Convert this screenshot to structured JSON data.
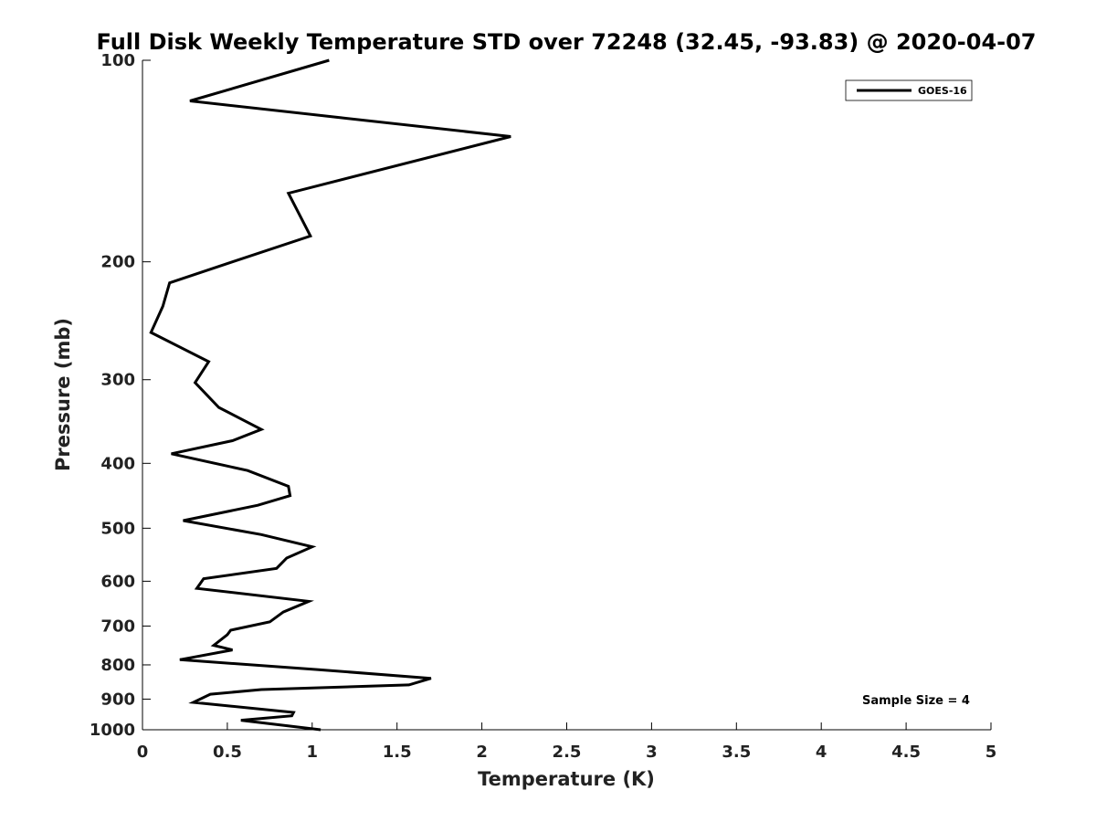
{
  "chart_data": {
    "type": "line",
    "title": "Full Disk Weekly Temperature STD over 72248 (32.45, -93.83) @ 2020-04-07",
    "xlabel": "Temperature (K)",
    "ylabel": "Pressure (mb)",
    "xlim": [
      0,
      5
    ],
    "ylim": [
      1000,
      100
    ],
    "yscale": "log",
    "x_ticks": [
      0,
      0.5,
      1,
      1.5,
      2,
      2.5,
      3,
      3.5,
      4,
      4.5,
      5
    ],
    "x_tick_labels": [
      "0",
      "0.5",
      "1",
      "1.5",
      "2",
      "2.5",
      "3",
      "3.5",
      "4",
      "4.5",
      "5"
    ],
    "y_ticks": [
      100,
      200,
      300,
      400,
      500,
      600,
      700,
      800,
      900,
      1000
    ],
    "y_tick_labels": [
      "100",
      "200",
      "300",
      "400",
      "500",
      "600",
      "700",
      "800",
      "900",
      "1000"
    ],
    "grid": false,
    "legend_position": "top-right",
    "annotation": "Sample Size = 4",
    "series": [
      {
        "name": "GOES-16",
        "color": "#000000",
        "x": [
          1.1,
          0.28,
          2.17,
          0.86,
          0.99,
          0.53,
          0.16,
          0.12,
          0.05,
          0.39,
          0.31,
          0.45,
          0.7,
          0.53,
          0.17,
          0.62,
          0.86,
          0.87,
          0.68,
          0.24,
          0.7,
          1.0,
          0.85,
          0.79,
          0.36,
          0.32,
          0.98,
          0.83,
          0.75,
          0.52,
          0.5,
          0.42,
          0.53,
          0.22,
          1.03,
          1.7,
          1.57,
          0.7,
          0.4,
          0.3,
          0.89,
          0.88,
          0.58,
          1.05
        ],
        "y": [
          100,
          115,
          130,
          158,
          183,
          200,
          215,
          233,
          255,
          282,
          303,
          330,
          356,
          370,
          387,
          410,
          433,
          447,
          462,
          487,
          511,
          533,
          554,
          574,
          595,
          615,
          643,
          667,
          690,
          710,
          721,
          748,
          760,
          786,
          813,
          838,
          857,
          871,
          885,
          910,
          942,
          953,
          968,
          1000
        ]
      }
    ]
  }
}
